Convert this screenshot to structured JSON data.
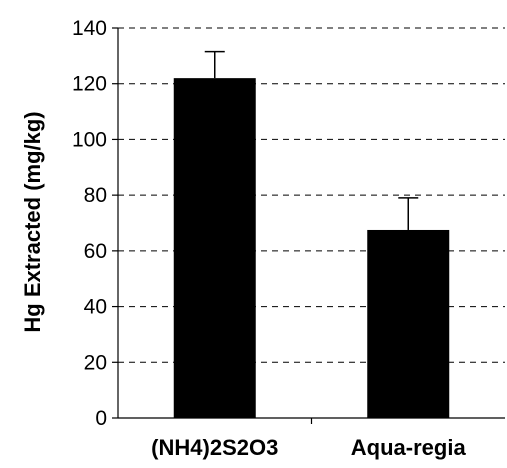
{
  "chart_data": {
    "type": "bar",
    "title": "",
    "xlabel": "",
    "ylabel": "Hg Extracted (mg/kg)",
    "categories": [
      "(NH4)2S2O3",
      "Aqua-regia"
    ],
    "values": [
      122,
      67.5
    ],
    "error_upper": [
      131.5,
      79
    ],
    "ylim": [
      0,
      140
    ],
    "yticks": [
      "0",
      "20",
      "40",
      "60",
      "80",
      "100",
      "120",
      "140"
    ],
    "grid": "horizontal-dashed",
    "legend": "none",
    "colors": {
      "bar": "#000000",
      "grid": "#000000",
      "axis": "#000000"
    }
  }
}
